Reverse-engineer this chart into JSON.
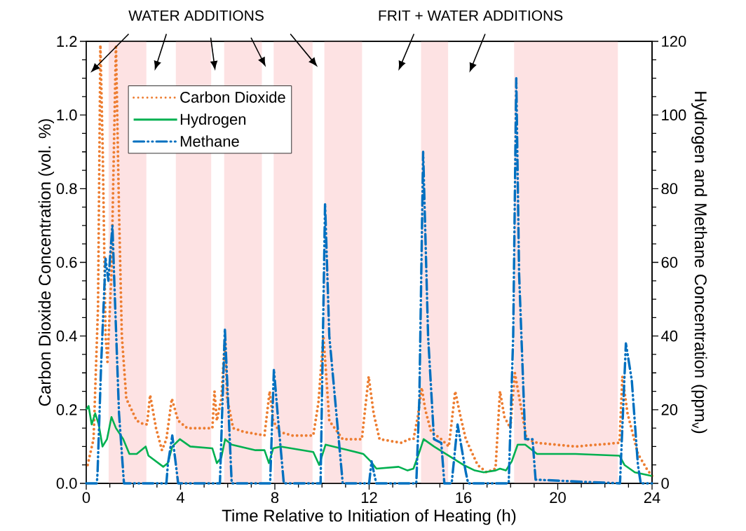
{
  "chart_data": {
    "type": "line",
    "xlabel": "Time Relative to Initiation of Heating (h)",
    "ylabel": "Carbon Dioxide Concentration (vol. %)",
    "y2label": "Hydrogen and Methane Concentration (ppm$_{v}$)",
    "xlim": [
      0,
      24
    ],
    "xticks": [
      0,
      4,
      8,
      12,
      16,
      20,
      24
    ],
    "ylim": [
      0,
      1.2
    ],
    "yticks": [
      {
        "value": 0,
        "label": "0.0"
      },
      {
        "value": 0.2,
        "label": "0.2"
      },
      {
        "value": 0.4,
        "label": "0.4"
      },
      {
        "value": 0.6,
        "label": "0.6"
      },
      {
        "value": 0.8,
        "label": "0.8"
      },
      {
        "value": 1.0,
        "label": "1.0"
      },
      {
        "value": 1.2,
        "label": "1.2"
      }
    ],
    "y2lim": [
      0,
      120
    ],
    "y2ticks": [
      0,
      20,
      40,
      60,
      80,
      100,
      120
    ],
    "legend": "top left",
    "marker": "none",
    "annotations": [
      "WATER ADDITIONS",
      "FRIT + WATER ADDITIONS"
    ],
    "bands": [
      {
        "axis": "x",
        "from": 0.95,
        "to": 2.55,
        "color": "#fde2e3"
      },
      {
        "axis": "x",
        "from": 3.8,
        "to": 5.3,
        "color": "#fde2e3"
      },
      {
        "axis": "x",
        "from": 5.85,
        "to": 7.45,
        "color": "#fde2e3"
      },
      {
        "axis": "x",
        "from": 7.95,
        "to": 9.6,
        "color": "#fde2e3"
      },
      {
        "axis": "x",
        "from": 10.1,
        "to": 11.7,
        "color": "#fde2e3"
      },
      {
        "axis": "x",
        "from": 14.2,
        "to": 15.35,
        "color": "#fde2e3"
      },
      {
        "axis": "x",
        "from": 18.15,
        "to": 22.55,
        "color": "#fde2e3"
      }
    ],
    "series": [
      {
        "name": "Carbon Dioxide",
        "color": "#ed7d31",
        "line_style": "dotted",
        "x": [
          0.06,
          0.31,
          0.5,
          0.6,
          0.7,
          0.82,
          0.9,
          1.07,
          1.26,
          1.39,
          1.51,
          1.7,
          2.14,
          2.45,
          2.58,
          2.71,
          2.96,
          3.21,
          3.4,
          3.63,
          3.9,
          4.28,
          5.04,
          5.35,
          5.44,
          5.54,
          5.73,
          5.88,
          5.98,
          6.23,
          6.68,
          7.56,
          7.78,
          7.93,
          8.19,
          8.75,
          9.63,
          9.85,
          10.06,
          10.15,
          10.31,
          10.88,
          11.69,
          11.98,
          12.19,
          12.44,
          13.38,
          13.69,
          13.88,
          14.06,
          14.23,
          14.38,
          14.63,
          15.06,
          15.38,
          15.65,
          15.88,
          16.1,
          16.6,
          16.98,
          17.36,
          17.55,
          17.74,
          17.99,
          18.18,
          18.43,
          18.68,
          19.12,
          20.75,
          22.62,
          22.74,
          22.96,
          23.4,
          23.77,
          24.0
        ],
        "values": [
          0.05,
          0.12,
          0.48,
          1.19,
          0.9,
          0.4,
          0.33,
          0.57,
          1.19,
          0.74,
          0.4,
          0.23,
          0.17,
          0.16,
          0.16,
          0.24,
          0.15,
          0.09,
          0.12,
          0.23,
          0.17,
          0.15,
          0.15,
          0.15,
          0.25,
          0.17,
          0.23,
          0.39,
          0.23,
          0.15,
          0.14,
          0.13,
          0.25,
          0.17,
          0.14,
          0.13,
          0.13,
          0.22,
          0.4,
          0.32,
          0.17,
          0.12,
          0.12,
          0.29,
          0.19,
          0.12,
          0.11,
          0.12,
          0.12,
          0.18,
          0.26,
          0.2,
          0.14,
          0.12,
          0.1,
          0.25,
          0.18,
          0.12,
          0.05,
          0.03,
          0.04,
          0.25,
          0.18,
          0.15,
          0.3,
          0.21,
          0.12,
          0.11,
          0.1,
          0.11,
          0.29,
          0.19,
          0.08,
          0.04,
          0.02
        ]
      },
      {
        "name": "Hydrogen",
        "color": "#00b050",
        "line_style": "solid",
        "axis": "y2",
        "x": [
          0,
          0.1,
          0.23,
          0.38,
          0.53,
          0.69,
          0.88,
          1.07,
          1.26,
          1.57,
          1.83,
          2.14,
          2.52,
          2.64,
          3.27,
          3.46,
          3.65,
          3.97,
          4.41,
          5.35,
          5.54,
          5.73,
          5.89,
          6.17,
          7.18,
          7.56,
          7.75,
          7.93,
          8.25,
          9.63,
          9.88,
          10.15,
          11.13,
          11.75,
          12.06,
          12.31,
          13.25,
          13.63,
          13.88,
          14.13,
          14.31,
          14.75,
          15.38,
          16.0,
          16.48,
          16.86,
          17.36,
          17.55,
          17.8,
          18.05,
          18.3,
          18.62,
          19.12,
          20.75,
          22.62,
          22.83,
          23.27,
          24.0
        ],
        "values": [
          20,
          21,
          16,
          19,
          16,
          10,
          12,
          18,
          15,
          12,
          8,
          8,
          10,
          7.5,
          4.5,
          5.5,
          10,
          12,
          10,
          9.5,
          5.5,
          7,
          12,
          10.5,
          9,
          9,
          5.5,
          9.5,
          10,
          8.5,
          5,
          10.5,
          9,
          8,
          6,
          4,
          4.5,
          3.5,
          4,
          8.5,
          12,
          10,
          7.5,
          5,
          3.5,
          3,
          3.5,
          4,
          3.5,
          6,
          10.5,
          10.5,
          8,
          8,
          7.5,
          5,
          3,
          2
        ]
      },
      {
        "name": "Methane",
        "color": "#0070c0",
        "line_style": "dashdotdot",
        "axis": "y2",
        "x": [
          0,
          0.45,
          0.48,
          0.63,
          0.82,
          0.94,
          1.11,
          1.2,
          1.39,
          1.6,
          3.4,
          3.46,
          3.65,
          3.9,
          5.67,
          5.88,
          6.17,
          7.8,
          7.96,
          8.13,
          8.38,
          9.94,
          10.13,
          10.31,
          10.88,
          12.0,
          12.1,
          12.3,
          14.0,
          14.13,
          14.29,
          14.5,
          14.75,
          15.06,
          15.19,
          15.5,
          15.75,
          16.1,
          16.2,
          17.92,
          18.11,
          18.24,
          18.36,
          18.62,
          18.93,
          19.06,
          22.64,
          22.89,
          23.14,
          23.4,
          23.52,
          24.0
        ],
        "values": [
          0,
          0,
          3,
          32,
          61,
          55,
          70,
          53,
          19,
          0,
          0,
          5,
          13,
          0,
          0,
          42,
          0,
          0,
          31,
          18,
          0,
          0,
          76,
          40,
          0,
          0,
          6,
          0,
          0,
          23,
          90,
          40,
          12,
          11,
          0,
          0,
          16,
          3,
          0,
          0,
          40,
          110,
          57,
          12,
          12,
          1,
          0,
          38,
          28,
          5,
          0,
          0
        ]
      }
    ]
  }
}
